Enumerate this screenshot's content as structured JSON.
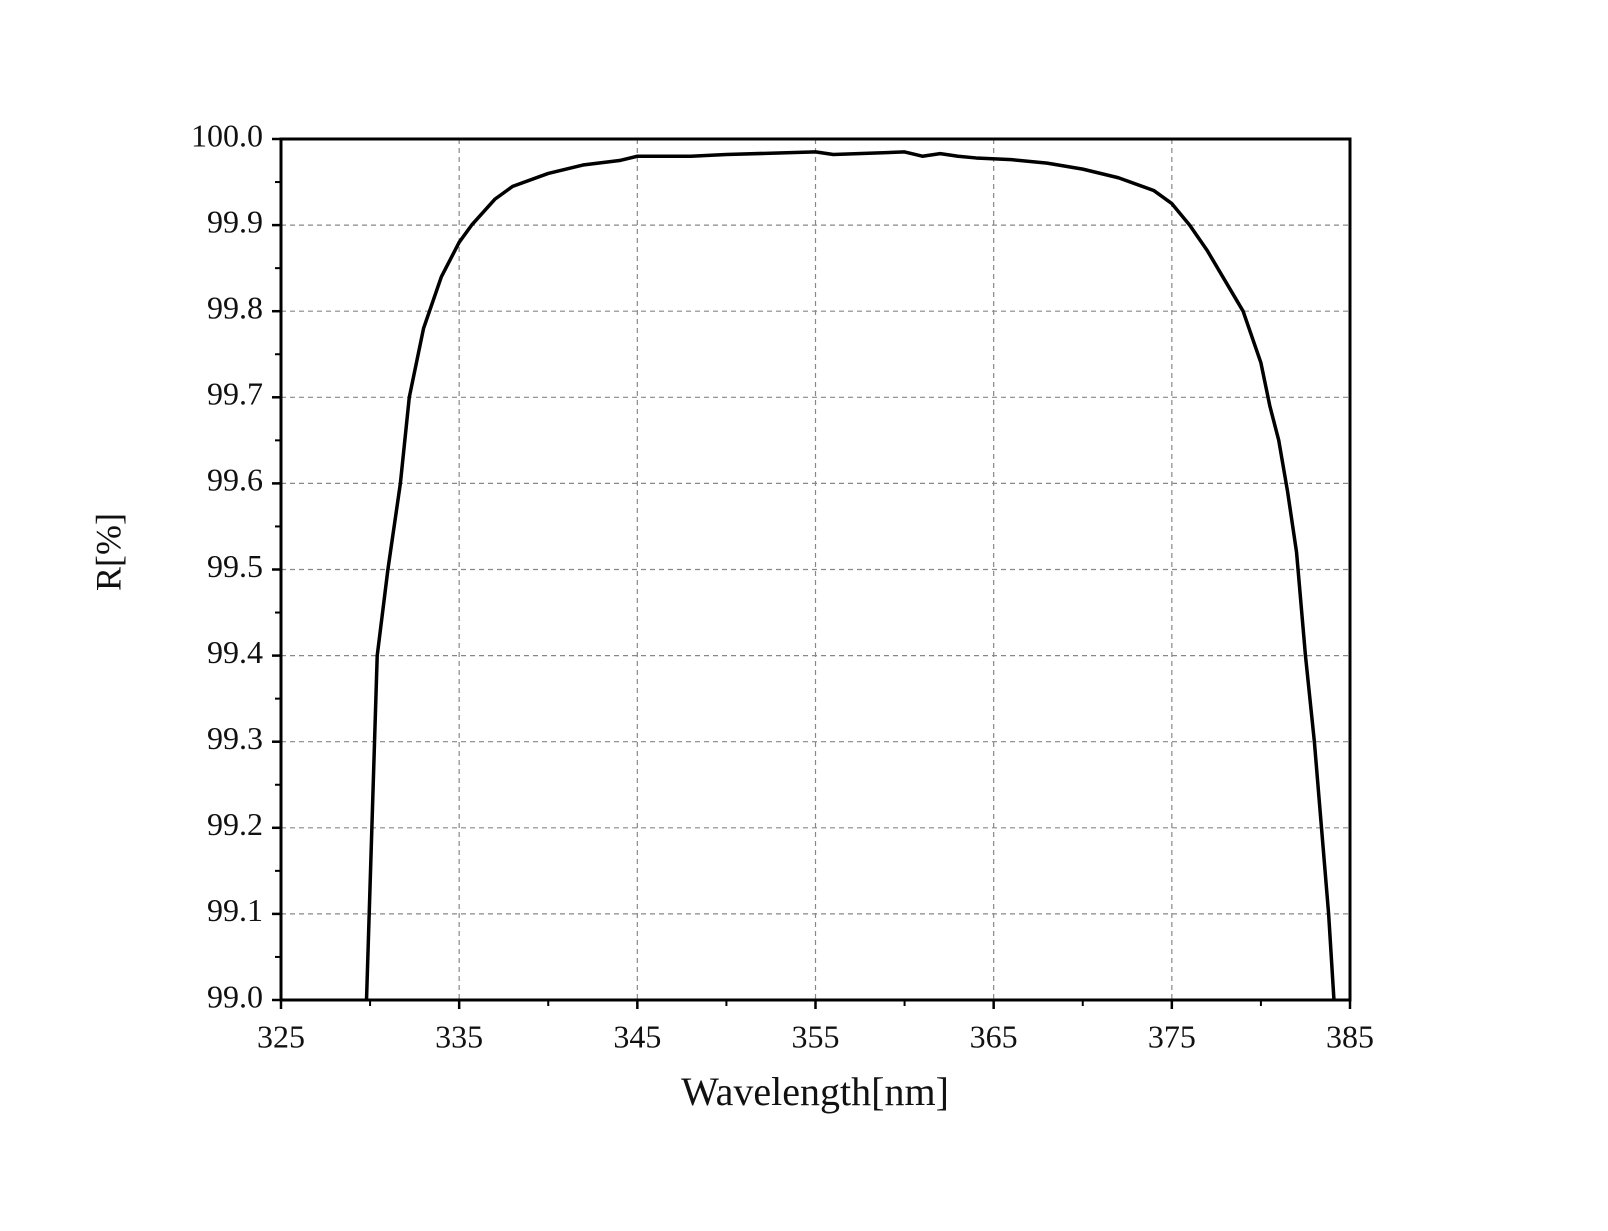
{
  "chart_data": {
    "type": "line",
    "x_label": "Wavelength[nm]",
    "y_label": "R[%]",
    "xlim": [
      325,
      385
    ],
    "ylim": [
      99.0,
      100.0
    ],
    "xticks": [
      325,
      335,
      345,
      355,
      365,
      375,
      385
    ],
    "xminorticks": [
      330,
      340,
      350,
      360,
      370,
      380
    ],
    "yticks": [
      {
        "value": 99,
        "label": "99.0"
      },
      99.1,
      99.2,
      99.3,
      99.4,
      99.5,
      99.6,
      99.7,
      99.8,
      99.9,
      {
        "value": 100,
        "label": "100.0"
      }
    ],
    "yminorticks": [
      99.05,
      99.15,
      99.25,
      99.35,
      99.45,
      99.55,
      99.65,
      99.75,
      99.85,
      99.95
    ],
    "grid": true,
    "series": [
      {
        "color": "#000000",
        "x": [
          329.8,
          330.1,
          330.4,
          331.0,
          331.7,
          332.2,
          333.0,
          334.0,
          335.0,
          335.7,
          337.0,
          338.0,
          340.0,
          342.0,
          344.0,
          345.0,
          348.0,
          350.0,
          355.0,
          356.0,
          360.0,
          361.0,
          362.0,
          363.0,
          364.0,
          366.0,
          368.0,
          370.0,
          372.0,
          374.0,
          375.0,
          376.0,
          377.0,
          378.0,
          379.0,
          380.0,
          380.5,
          381.0,
          381.5,
          382.0,
          382.5,
          383.0,
          383.4,
          383.8,
          384.1
        ],
        "values": [
          99.0,
          99.2,
          99.4,
          99.5,
          99.6,
          99.7,
          99.78,
          99.84,
          99.88,
          99.9,
          99.93,
          99.945,
          99.96,
          99.97,
          99.975,
          99.98,
          99.98,
          99.982,
          99.985,
          99.982,
          99.985,
          99.98,
          99.983,
          99.98,
          99.978,
          99.976,
          99.972,
          99.965,
          99.955,
          99.94,
          99.925,
          99.9,
          99.87,
          99.835,
          99.8,
          99.74,
          99.69,
          99.65,
          99.59,
          99.52,
          99.4,
          99.3,
          99.2,
          99.1,
          99.0
        ]
      }
    ]
  }
}
